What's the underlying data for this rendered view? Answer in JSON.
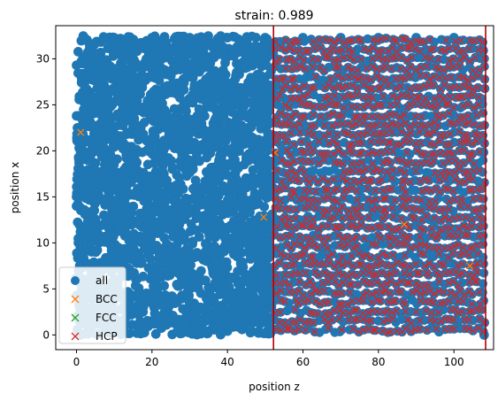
{
  "chart_data": {
    "type": "scatter",
    "title": "strain: 0.989",
    "xlabel": "position z",
    "ylabel": "position x",
    "xlim": [
      -5.5,
      110.5
    ],
    "ylim": [
      -1.6,
      33.6
    ],
    "xticks": [
      0,
      20,
      40,
      60,
      80,
      100
    ],
    "yticks": [
      0,
      5,
      10,
      15,
      20,
      25,
      30
    ],
    "xtick_labels": [
      "0",
      "20",
      "40",
      "60",
      "80",
      100
    ],
    "ytick_labels": [
      "0",
      "5",
      "10",
      "15",
      "20",
      "25",
      "30"
    ],
    "vertical_lines": [
      {
        "x": 52.2,
        "color": "#b30000"
      },
      {
        "x": 108.4,
        "color": "#b30000"
      }
    ],
    "legend_position": "lower-left",
    "grid": false,
    "series": [
      {
        "name": "all",
        "marker": "circle",
        "color": "#1f77b4",
        "description_range": {
          "x": [
            0,
            108.5
          ],
          "y": [
            0,
            32.5
          ]
        },
        "x": [
          0,
          0,
          0,
          0,
          1,
          2,
          10,
          20,
          30,
          40,
          50,
          60,
          70,
          80,
          90,
          100,
          108
        ],
        "y": [
          29.3,
          23.8,
          14.0,
          6.2,
          0,
          32.3,
          32.3,
          32.3,
          32.3,
          32.3,
          32.3,
          32.3,
          32.3,
          32.3,
          32.3,
          32.3,
          0
        ]
      },
      {
        "name": "BCC",
        "marker": "x",
        "color": "#ff7f0e",
        "x": [
          1.1,
          49.6,
          52.6,
          86.8,
          104.2
        ],
        "y": [
          22.0,
          12.8,
          19.8,
          12.0,
          7.5
        ]
      },
      {
        "name": "FCC",
        "marker": "x",
        "color": "#2ca02c",
        "x": [],
        "y": []
      },
      {
        "name": "HCP",
        "marker": "x",
        "color": "#d62728",
        "description_range": {
          "x": [
            52.2,
            108.4
          ],
          "y": [
            0,
            32.5
          ]
        }
      }
    ]
  }
}
